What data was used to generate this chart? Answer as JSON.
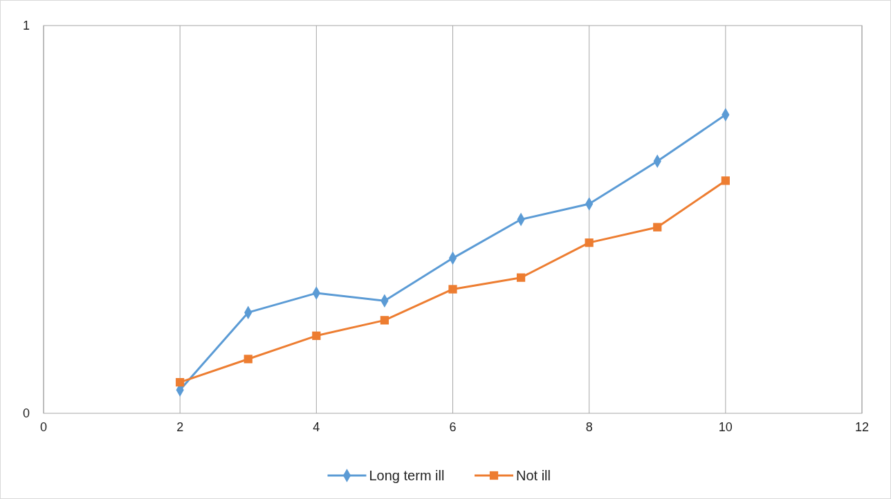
{
  "chart_data": {
    "type": "line",
    "x": [
      2,
      3,
      4,
      5,
      6,
      7,
      8,
      9,
      10
    ],
    "series": [
      {
        "name": "Long term ill",
        "color": "#5b9bd5",
        "marker": "diamond",
        "values": [
          0.06,
          0.26,
          0.31,
          0.29,
          0.4,
          0.5,
          0.54,
          0.65,
          0.77
        ]
      },
      {
        "name": "Not ill",
        "color": "#ed7d31",
        "marker": "square",
        "values": [
          0.08,
          0.14,
          0.2,
          0.24,
          0.32,
          0.35,
          0.44,
          0.48,
          0.6
        ]
      }
    ],
    "xlim": [
      0,
      12
    ],
    "xticks": [
      0,
      2,
      4,
      6,
      8,
      10,
      12
    ],
    "ylim": [
      0,
      1
    ],
    "yticks": [
      0,
      1
    ],
    "grid": "x",
    "legend": "bottom",
    "line_style": "solid"
  }
}
